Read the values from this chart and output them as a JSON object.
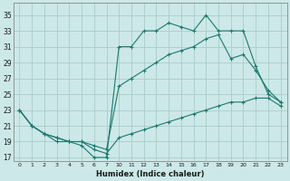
{
  "xlabel": "Humidex (Indice chaleur)",
  "background_color": "#cce8e8",
  "grid_color": "#aacccc",
  "line_color": "#1a7a6e",
  "x_labels": [
    "0",
    "1",
    "2",
    "3",
    "4",
    "5",
    "6",
    "7",
    "10",
    "11",
    "12",
    "13",
    "14",
    "15",
    "16",
    "17",
    "18",
    "19",
    "20",
    "21",
    "22",
    "23"
  ],
  "yticks": [
    17,
    19,
    21,
    23,
    25,
    27,
    29,
    31,
    33,
    35
  ],
  "ylim": [
    16.5,
    36.5
  ],
  "line1_y": [
    23,
    21,
    20,
    19,
    19,
    18.5,
    17,
    17,
    31,
    31,
    33,
    33,
    34,
    33.5,
    33,
    35,
    33,
    33,
    33,
    28.5,
    25,
    24
  ],
  "line2_y": [
    23,
    21,
    20,
    19.5,
    19,
    19,
    18.5,
    18,
    26,
    27,
    28,
    29,
    30,
    30.5,
    31,
    32,
    32.5,
    29.5,
    30,
    28,
    25.5,
    24
  ],
  "line3_y": [
    23,
    21,
    20,
    19.5,
    19,
    19,
    18,
    17.5,
    19.5,
    20,
    20.5,
    21,
    21.5,
    22,
    22.5,
    23,
    23.5,
    24,
    24,
    24.5,
    24.5,
    23.5
  ]
}
